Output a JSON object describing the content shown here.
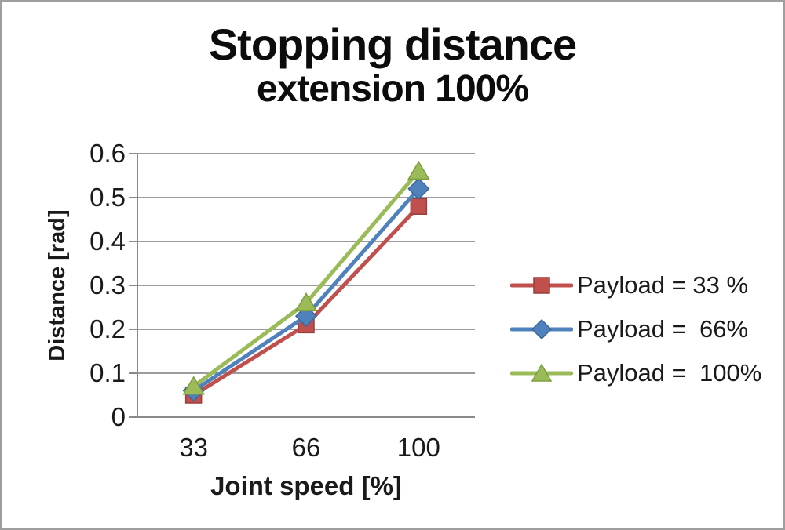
{
  "figure": {
    "title_line1": "Stopping distance",
    "title_line2": "extension 100%"
  },
  "chart_data": {
    "type": "line",
    "title": "Stopping distance extension 100%",
    "xlabel": "Joint speed [%]",
    "ylabel": "Distance [rad]",
    "categories": [
      "33",
      "66",
      "100"
    ],
    "x_values": [
      33,
      66,
      100
    ],
    "ylim": [
      0,
      0.6
    ],
    "y_tick_step": 0.1,
    "y_tick_labels": [
      "0",
      "0.1",
      "0.2",
      "0.3",
      "0.4",
      "0.5",
      "0.6"
    ],
    "grid": true,
    "legend_position": "right-center",
    "series": [
      {
        "name": "Payload = 33 %",
        "marker": "square",
        "color": "#C0504D",
        "edge_color": "#9A3D3B",
        "values": [
          0.05,
          0.21,
          0.48
        ]
      },
      {
        "name": "Payload =  66%",
        "marker": "diamond",
        "color": "#4F81BD",
        "edge_color": "#3C6899",
        "values": [
          0.06,
          0.23,
          0.52
        ]
      },
      {
        "name": "Payload =  100%",
        "marker": "triangle",
        "color": "#9BBB59",
        "edge_color": "#7EA043",
        "values": [
          0.07,
          0.26,
          0.56
        ]
      }
    ],
    "colors": {
      "grid_line": "#9c9c9c",
      "axis_line": "#8a8a8a",
      "text": "#1a1a1a",
      "background": "#ffffff",
      "frame_border": "#9e9e9e"
    }
  }
}
